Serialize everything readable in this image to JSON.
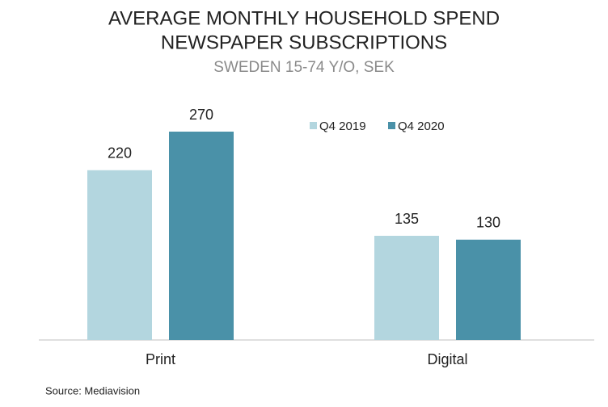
{
  "chart_data": {
    "type": "bar",
    "title": [
      "AVERAGE MONTHLY HOUSEHOLD SPEND",
      "NEWSPAPER SUBSCRIPTIONS"
    ],
    "subtitle": "SWEDEN 15-74 Y/O, SEK",
    "categories": [
      "Print",
      "Digital"
    ],
    "series": [
      {
        "name": "Q4 2019",
        "color": "#b3d6df",
        "values": [
          220,
          135
        ]
      },
      {
        "name": "Q4 2020",
        "color": "#4a91a8",
        "values": [
          270,
          130
        ]
      }
    ],
    "ylim": [
      0,
      315
    ],
    "source": "Source: Mediavision"
  }
}
